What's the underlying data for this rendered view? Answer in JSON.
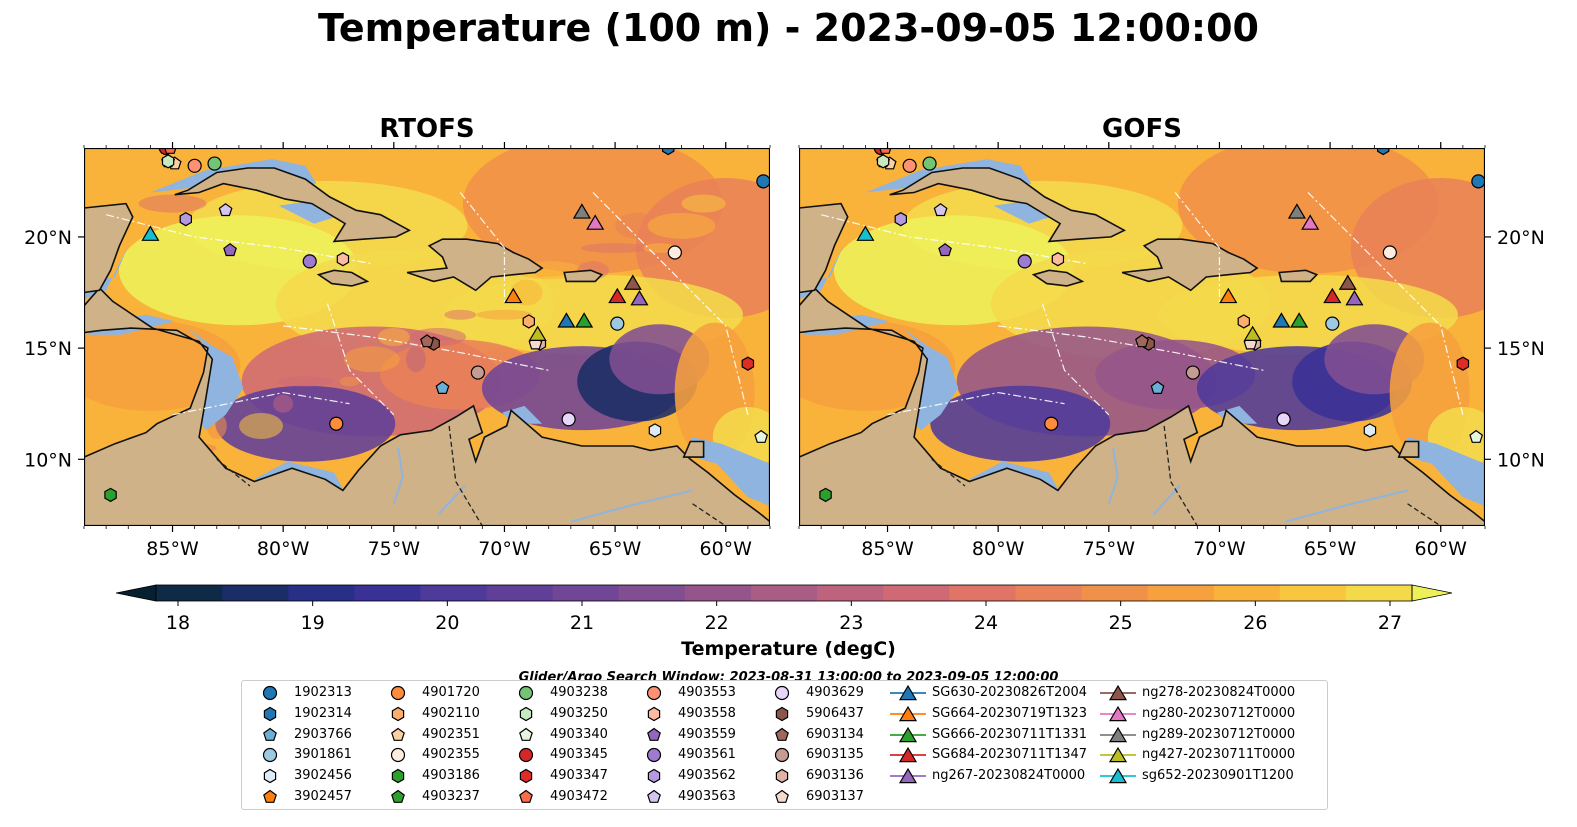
{
  "title": "Temperature (100 m) - 2023-09-05 12:00:00",
  "panels": [
    {
      "title": "RTOFS"
    },
    {
      "title": "GOFS"
    }
  ],
  "axes": {
    "lon_ticks": [
      "85°W",
      "80°W",
      "75°W",
      "70°W",
      "65°W",
      "60°W"
    ],
    "lat_ticks": [
      "20°N",
      "15°N",
      "10°N"
    ],
    "lon_range": [
      -89,
      -58
    ],
    "lat_range": [
      7,
      24
    ]
  },
  "colorbar": {
    "label": "Temperature (degC)",
    "ticks": [
      "18",
      "19",
      "20",
      "21",
      "22",
      "23",
      "24",
      "25",
      "26",
      "27"
    ],
    "vmin": 18,
    "vmax": 27,
    "colors": [
      "#06202f",
      "#0f2a47",
      "#1a2d66",
      "#272f87",
      "#3a3196",
      "#4e3a9a",
      "#603f99",
      "#714696",
      "#824e92",
      "#96558a",
      "#a95c85",
      "#bd637d",
      "#cf6a74",
      "#df7467",
      "#e98258",
      "#f09149",
      "#f6a13e",
      "#f9b23a",
      "#f8c63f",
      "#f4da4b",
      "#eef05a"
    ]
  },
  "legend": {
    "title": "Glider/Argo Search Window: 2023-08-31 13:00:00 to 2023-09-05 12:00:00",
    "columns": [
      [
        {
          "label": "1902313",
          "marker": "circle",
          "color": "#1f77b4"
        },
        {
          "label": "1902314",
          "marker": "hexagon",
          "color": "#1f77b4"
        },
        {
          "label": "2903766",
          "marker": "pentagon",
          "color": "#6baed6"
        },
        {
          "label": "3901861",
          "marker": "circle",
          "color": "#9ecae1"
        },
        {
          "label": "3902456",
          "marker": "hexagon",
          "color": "#deebf7"
        },
        {
          "label": "3902457",
          "marker": "pentagon",
          "color": "#ff7f0e"
        }
      ],
      [
        {
          "label": "4901720",
          "marker": "circle",
          "color": "#fd8d3c"
        },
        {
          "label": "4902110",
          "marker": "hexagon",
          "color": "#fdae6b"
        },
        {
          "label": "4902351",
          "marker": "pentagon",
          "color": "#fdd0a2"
        },
        {
          "label": "4902355",
          "marker": "circle",
          "color": "#feedde"
        },
        {
          "label": "4903186",
          "marker": "hexagon",
          "color": "#2ca02c"
        },
        {
          "label": "4903237",
          "marker": "pentagon",
          "color": "#2ca02c"
        }
      ],
      [
        {
          "label": "4903238",
          "marker": "circle",
          "color": "#74c476"
        },
        {
          "label": "4903250",
          "marker": "hexagon",
          "color": "#c7e9c0"
        },
        {
          "label": "4903340",
          "marker": "pentagon",
          "color": "#e5f5e0"
        },
        {
          "label": "4903345",
          "marker": "circle",
          "color": "#d62728"
        },
        {
          "label": "4903347",
          "marker": "hexagon",
          "color": "#de2d26"
        },
        {
          "label": "4903472",
          "marker": "pentagon",
          "color": "#fb6a4a"
        }
      ],
      [
        {
          "label": "4903553",
          "marker": "circle",
          "color": "#fc9272"
        },
        {
          "label": "4903558",
          "marker": "hexagon",
          "color": "#fcbba1"
        },
        {
          "label": "4903559",
          "marker": "pentagon",
          "color": "#9467bd"
        },
        {
          "label": "4903561",
          "marker": "circle",
          "color": "#9e7bd1"
        },
        {
          "label": "4903562",
          "marker": "hexagon",
          "color": "#b49ae0"
        },
        {
          "label": "4903563",
          "marker": "pentagon",
          "color": "#d4c4f0"
        }
      ],
      [
        {
          "label": "4903629",
          "marker": "circle",
          "color": "#e6d6f7"
        },
        {
          "label": "5906437",
          "marker": "hexagon",
          "color": "#8c564b"
        },
        {
          "label": "6903134",
          "marker": "pentagon",
          "color": "#a0675a"
        },
        {
          "label": "6903135",
          "marker": "circle",
          "color": "#c49c94"
        },
        {
          "label": "6903136",
          "marker": "hexagon",
          "color": "#e0b4a4"
        },
        {
          "label": "6903137",
          "marker": "pentagon",
          "color": "#f5d9cf"
        }
      ],
      [
        {
          "label": "SG630-20230826T2004",
          "marker": "triangle",
          "color": "#1f77b4"
        },
        {
          "label": "SG664-20230719T1323",
          "marker": "triangle",
          "color": "#ff7f0e"
        },
        {
          "label": "SG666-20230711T1331",
          "marker": "triangle",
          "color": "#2ca02c"
        },
        {
          "label": "SG684-20230711T1347",
          "marker": "triangle",
          "color": "#d62728"
        },
        {
          "label": "ng267-20230824T0000",
          "marker": "triangle",
          "color": "#9467bd"
        }
      ],
      [
        {
          "label": "ng278-20230824T0000",
          "marker": "triangle",
          "color": "#8c564b"
        },
        {
          "label": "ng280-20230712T0000",
          "marker": "triangle",
          "color": "#e377c2"
        },
        {
          "label": "ng289-20230712T0000",
          "marker": "triangle",
          "color": "#7f7f7f"
        },
        {
          "label": "ng427-20230711T0000",
          "marker": "triangle",
          "color": "#bcbd22"
        },
        {
          "label": "sg652-20230901T1200",
          "marker": "triangle",
          "color": "#17becf"
        }
      ]
    ]
  },
  "markers": [
    {
      "id": "1902313",
      "lon": -58.3,
      "lat": 22.5
    },
    {
      "id": "1902314",
      "lon": -62.6,
      "lat": 24.0
    },
    {
      "id": "2903766",
      "lon": -72.8,
      "lat": 13.2
    },
    {
      "id": "3901861",
      "lon": -64.9,
      "lat": 16.1
    },
    {
      "id": "3902456",
      "lon": -63.2,
      "lat": 11.3
    },
    {
      "id": "3902457",
      "lon": -85.3,
      "lat": 24.0
    },
    {
      "id": "4901720",
      "lon": -77.6,
      "lat": 11.6
    },
    {
      "id": "4902110",
      "lon": -68.9,
      "lat": 16.2
    },
    {
      "id": "4902351",
      "lon": -84.9,
      "lat": 23.3
    },
    {
      "id": "4902355",
      "lon": -62.3,
      "lat": 19.3
    },
    {
      "id": "4903186",
      "lon": -87.8,
      "lat": 8.4
    },
    {
      "id": "4903237",
      "lon": -85.2,
      "lat": 23.4
    },
    {
      "id": "4903238",
      "lon": -83.1,
      "lat": 23.3
    },
    {
      "id": "4903250",
      "lon": -85.2,
      "lat": 23.4
    },
    {
      "id": "4903340",
      "lon": -58.4,
      "lat": 11.0
    },
    {
      "id": "4903345",
      "lon": -85.3,
      "lat": 24.0
    },
    {
      "id": "4903347",
      "lon": -59.0,
      "lat": 14.3
    },
    {
      "id": "4903472",
      "lon": -85.1,
      "lat": 24.0
    },
    {
      "id": "4903553",
      "lon": -84.0,
      "lat": 23.2
    },
    {
      "id": "4903558",
      "lon": -77.3,
      "lat": 19.0
    },
    {
      "id": "4903559",
      "lon": -82.4,
      "lat": 19.4
    },
    {
      "id": "4903561",
      "lon": -78.8,
      "lat": 18.9
    },
    {
      "id": "4903562",
      "lon": -84.4,
      "lat": 20.8
    },
    {
      "id": "4903563",
      "lon": -82.6,
      "lat": 21.2
    },
    {
      "id": "4903629",
      "lon": -67.1,
      "lat": 11.8
    },
    {
      "id": "5906437",
      "lon": -73.2,
      "lat": 15.2
    },
    {
      "id": "6903134",
      "lon": -73.5,
      "lat": 15.3
    },
    {
      "id": "6903135",
      "lon": -71.2,
      "lat": 13.9
    },
    {
      "id": "6903136",
      "lon": -68.4,
      "lat": 15.2
    },
    {
      "id": "6903137",
      "lon": -68.6,
      "lat": 15.2
    },
    {
      "id": "SG630-20230826T2004",
      "lon": -67.2,
      "lat": 16.2
    },
    {
      "id": "SG664-20230719T1323",
      "lon": -69.6,
      "lat": 17.3
    },
    {
      "id": "SG666-20230711T1331",
      "lon": -66.4,
      "lat": 16.2
    },
    {
      "id": "SG684-20230711T1347",
      "lon": -64.9,
      "lat": 17.3
    },
    {
      "id": "ng267-20230824T0000",
      "lon": -63.9,
      "lat": 17.2
    },
    {
      "id": "ng278-20230824T0000",
      "lon": -64.2,
      "lat": 17.9
    },
    {
      "id": "ng280-20230712T0000",
      "lon": -65.9,
      "lat": 20.6
    },
    {
      "id": "ng289-20230712T0000",
      "lon": -66.5,
      "lat": 21.1
    },
    {
      "id": "ng427-20230711T0000",
      "lon": -68.5,
      "lat": 15.6
    },
    {
      "id": "sg652-20230901T1200",
      "lon": -86.0,
      "lat": 20.1
    }
  ]
}
